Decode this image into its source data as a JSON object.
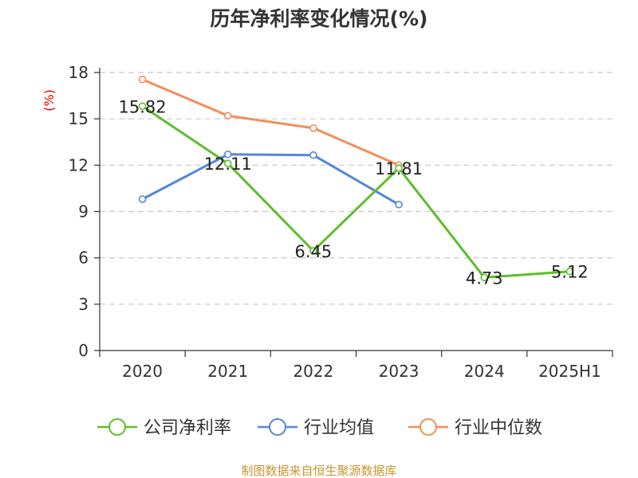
{
  "chart_data": {
    "type": "line",
    "title": "历年净利率变化情况(%)",
    "ylabel": "(%)",
    "categories": [
      "2020",
      "2021",
      "2022",
      "2023",
      "2024",
      "2025H1"
    ],
    "yticks": [
      "0",
      "3",
      "6",
      "9",
      "12",
      "15",
      "18"
    ],
    "ylim": [
      0,
      18
    ],
    "grid": true,
    "legend_position": "bottom",
    "series": [
      {
        "name": "公司净利率",
        "color": "#5cbf2a",
        "values": [
          15.82,
          12.11,
          6.45,
          11.81,
          4.73,
          5.12
        ],
        "labels": [
          "15.82",
          "12.11",
          "6.45",
          "11.81",
          "4.73",
          "5.12"
        ]
      },
      {
        "name": "行业均值",
        "color": "#5585dd",
        "values": [
          9.8,
          12.7,
          12.65,
          9.45,
          null,
          null
        ]
      },
      {
        "name": "行业中位数",
        "color": "#f28e5b",
        "values": [
          17.55,
          15.2,
          14.4,
          12.0,
          null,
          null
        ]
      }
    ],
    "source": "制图数据来自恒生聚源数据库"
  }
}
